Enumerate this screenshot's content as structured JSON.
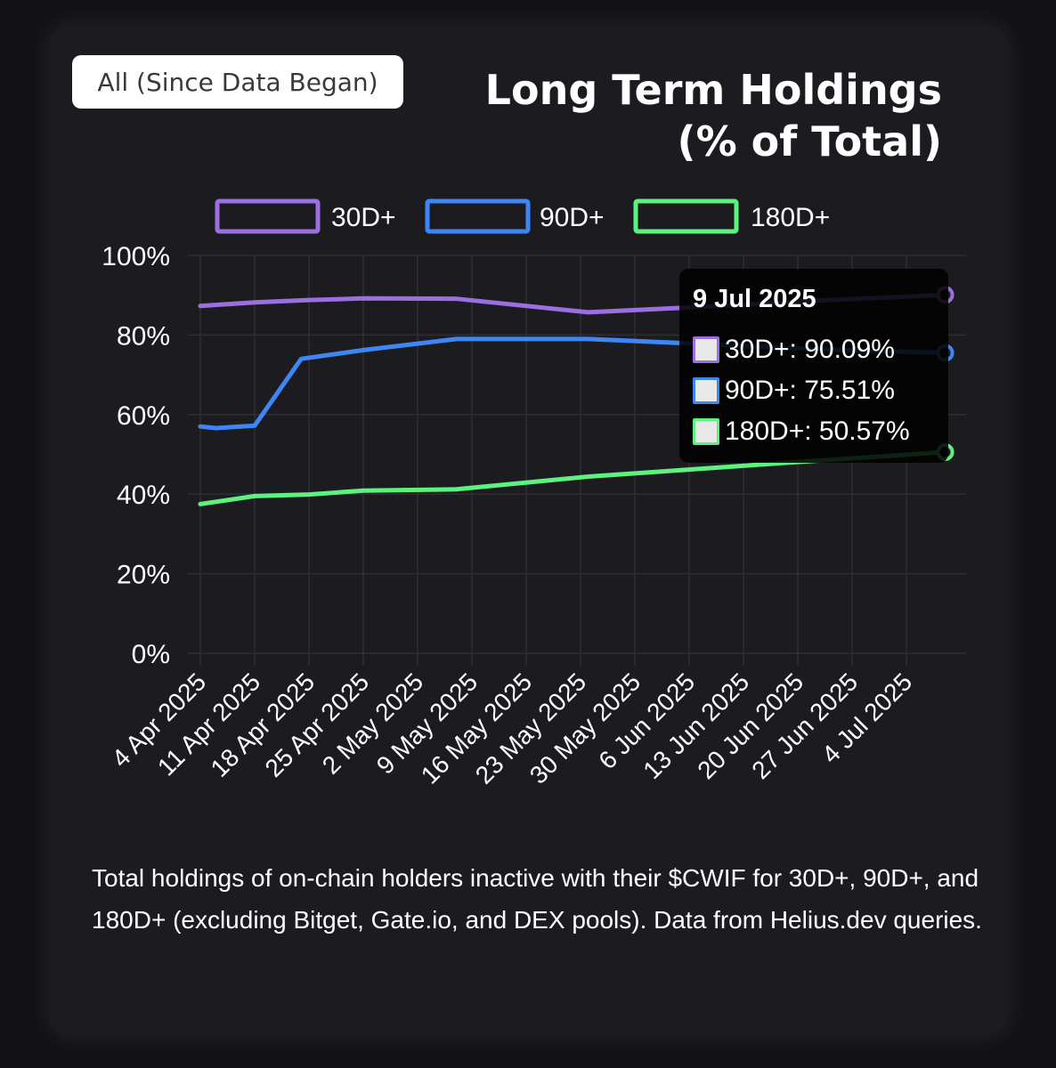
{
  "range_button": {
    "label": "All (Since Data Began)"
  },
  "title": {
    "line1": "Long Term Holdings",
    "line2": "(% of Total)"
  },
  "caption": "Total holdings of on-chain holders inactive with their $CWIF for 30D+, 90D+, and 180D+ (excluding Bitget, Gate.io, and DEX pools). Data from Helius.dev queries.",
  "tooltip": {
    "date": "9 Jul 2025",
    "rows": [
      {
        "text": "30D+: 90.09%",
        "color": "#9b6fe0"
      },
      {
        "text": "90D+: 75.51%",
        "color": "#3f86f5"
      },
      {
        "text": "180D+: 50.57%",
        "color": "#5cf27f"
      }
    ]
  },
  "chart_data": {
    "type": "line",
    "title": "Long Term Holdings (% of Total)",
    "xlabel": "",
    "ylabel": "",
    "ylim": [
      0,
      100
    ],
    "yticks": [
      "0%",
      "20%",
      "40%",
      "60%",
      "80%",
      "100%"
    ],
    "xticks": [
      "4 Apr 2025",
      "11 Apr 2025",
      "18 Apr 2025",
      "25 Apr 2025",
      "2 May 2025",
      "9 May 2025",
      "16 May 2025",
      "23 May 2025",
      "30 May 2025",
      "6 Jun 2025",
      "13 Jun 2025",
      "20 Jun 2025",
      "27 Jun 2025",
      "4 Jul 2025"
    ],
    "xrange": [
      "2025-04-04",
      "2025-07-10"
    ],
    "grid": true,
    "legend_position": "top",
    "series": [
      {
        "name": "30D+",
        "color": "#9b6fe0",
        "x": [
          "2025-04-04",
          "2025-04-11",
          "2025-04-18",
          "2025-04-25",
          "2025-05-07",
          "2025-05-24",
          "2025-06-07",
          "2025-06-21",
          "2025-07-09"
        ],
        "y": [
          87.3,
          88.2,
          88.8,
          89.2,
          89.1,
          85.7,
          87.0,
          88.5,
          90.09
        ]
      },
      {
        "name": "90D+",
        "color": "#3f86f5",
        "x": [
          "2025-04-04",
          "2025-04-06",
          "2025-04-11",
          "2025-04-17",
          "2025-04-25",
          "2025-05-07",
          "2025-05-24",
          "2025-06-07",
          "2025-06-21",
          "2025-07-09"
        ],
        "y": [
          57.0,
          56.6,
          57.2,
          74.0,
          76.2,
          79.0,
          79.0,
          77.8,
          76.5,
          75.51
        ]
      },
      {
        "name": "180D+",
        "color": "#5cf27f",
        "x": [
          "2025-04-04",
          "2025-04-11",
          "2025-04-18",
          "2025-04-25",
          "2025-05-07",
          "2025-05-24",
          "2025-06-07",
          "2025-06-21",
          "2025-07-09"
        ],
        "y": [
          37.5,
          39.5,
          39.9,
          40.9,
          41.2,
          44.4,
          46.3,
          48.2,
          50.57
        ]
      }
    ]
  }
}
